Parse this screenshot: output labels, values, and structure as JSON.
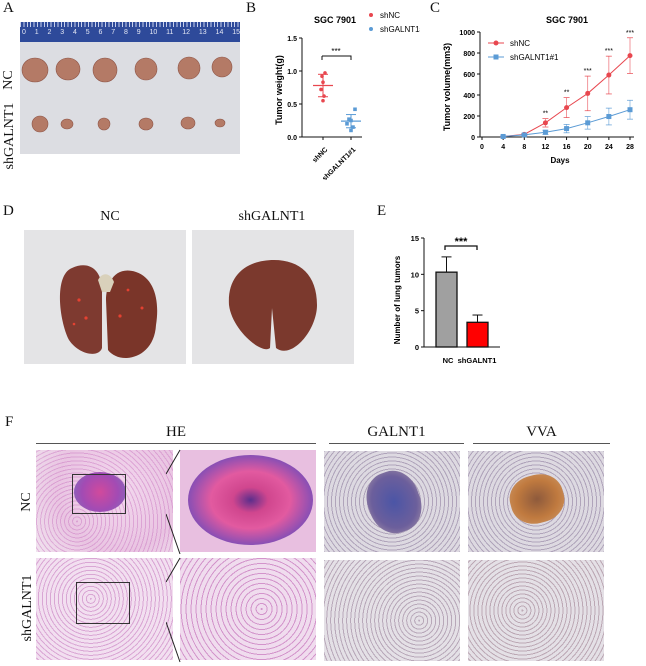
{
  "figure": {
    "panels": {
      "A": {
        "letter": "A",
        "row_labels": [
          "NC",
          "shGALNT1"
        ],
        "ruler_ticks": [
          "0",
          "1",
          "2",
          "3",
          "4",
          "5",
          "6",
          "7",
          "8",
          "9",
          "10",
          "11",
          "12",
          "13",
          "14",
          "15"
        ]
      },
      "B": {
        "letter": "B",
        "title": "SGC 7901",
        "ylabel": "Tumor weight(g)",
        "yticks": [
          "0.0",
          "0.5",
          "1.0",
          "1.5"
        ],
        "xticks": [
          "shNC",
          "shGALNT1#1"
        ],
        "legend": [
          "shNC",
          "shGALNT1#1"
        ],
        "significance": "***"
      },
      "C": {
        "letter": "C",
        "title": "SGC 7901",
        "ylabel": "Tumor volume(mm3)",
        "xlabel": "Days",
        "yticks": [
          "0",
          "200",
          "400",
          "600",
          "800",
          "1000"
        ],
        "xticks": [
          "0",
          "4",
          "8",
          "12",
          "16",
          "20",
          "24",
          "28"
        ],
        "legend": [
          "shNC",
          "shGALNT1#1"
        ],
        "significance": [
          "",
          "",
          "**",
          "**",
          "***",
          "***",
          "***"
        ]
      },
      "D": {
        "letter": "D",
        "col_labels": [
          "NC",
          "shGALNT1"
        ]
      },
      "E": {
        "letter": "E",
        "ylabel": "Number of lung tumors",
        "yticks": [
          "0",
          "5",
          "10",
          "15"
        ],
        "xticks": [
          "NC",
          "shGALNT1"
        ],
        "significance": "***"
      },
      "F": {
        "letter": "F",
        "col_titles": [
          "HE",
          "GALNT1",
          "VVA"
        ],
        "row_labels": [
          "NC",
          "shGALNT1"
        ]
      }
    },
    "colors": {
      "red": "#e8474f",
      "blue": "#5b9bd5",
      "bar_gray": "#a0a0a0",
      "bar_red": "#ff0000",
      "ruler_blue": "#2e4a9a"
    }
  },
  "chart_data": [
    {
      "panel": "B",
      "type": "scatter",
      "title": "SGC 7901",
      "xlabel": "",
      "ylabel": "Tumor weight(g)",
      "ylim": [
        0,
        1.5
      ],
      "categories": [
        "shNC",
        "shGALNT1#1"
      ],
      "series": [
        {
          "name": "shNC",
          "values": [
            0.55,
            0.62,
            0.72,
            0.83,
            0.92,
            0.97
          ],
          "mean": 0.78,
          "sd": 0.17,
          "color": "#e8474f"
        },
        {
          "name": "shGALNT1#1",
          "values": [
            0.1,
            0.15,
            0.2,
            0.25,
            0.27,
            0.42
          ],
          "mean": 0.24,
          "sd": 0.1,
          "color": "#5b9bd5"
        }
      ],
      "annotations": [
        "***"
      ],
      "legend_position": "right"
    },
    {
      "panel": "C",
      "type": "line",
      "title": "SGC 7901",
      "xlabel": "Days",
      "ylabel": "Tumor volume(mm3)",
      "xlim": [
        0,
        28
      ],
      "ylim": [
        0,
        1000
      ],
      "x": [
        4,
        8,
        12,
        16,
        20,
        24,
        28
      ],
      "series": [
        {
          "name": "shNC",
          "values": [
            5,
            25,
            135,
            280,
            415,
            590,
            775
          ],
          "error": [
            3,
            8,
            40,
            95,
            165,
            180,
            170
          ],
          "color": "#e8474f",
          "marker": "circle"
        },
        {
          "name": "shGALNT1#1",
          "values": [
            5,
            20,
            45,
            80,
            135,
            195,
            260
          ],
          "error": [
            3,
            6,
            20,
            40,
            60,
            80,
            90
          ],
          "color": "#5b9bd5",
          "marker": "square"
        }
      ],
      "annotations": [
        "",
        "",
        "**",
        "**",
        "***",
        "***",
        "***"
      ],
      "legend_position": "upper-left"
    },
    {
      "panel": "E",
      "type": "bar",
      "title": "",
      "xlabel": "",
      "ylabel": "Number of lung tumors",
      "ylim": [
        0,
        15
      ],
      "categories": [
        "NC",
        "shGALNT1"
      ],
      "values": [
        10.3,
        3.4
      ],
      "error": [
        2.1,
        1.0
      ],
      "colors": [
        "#a0a0a0",
        "#ff0000"
      ],
      "annotations": [
        "***"
      ]
    }
  ]
}
